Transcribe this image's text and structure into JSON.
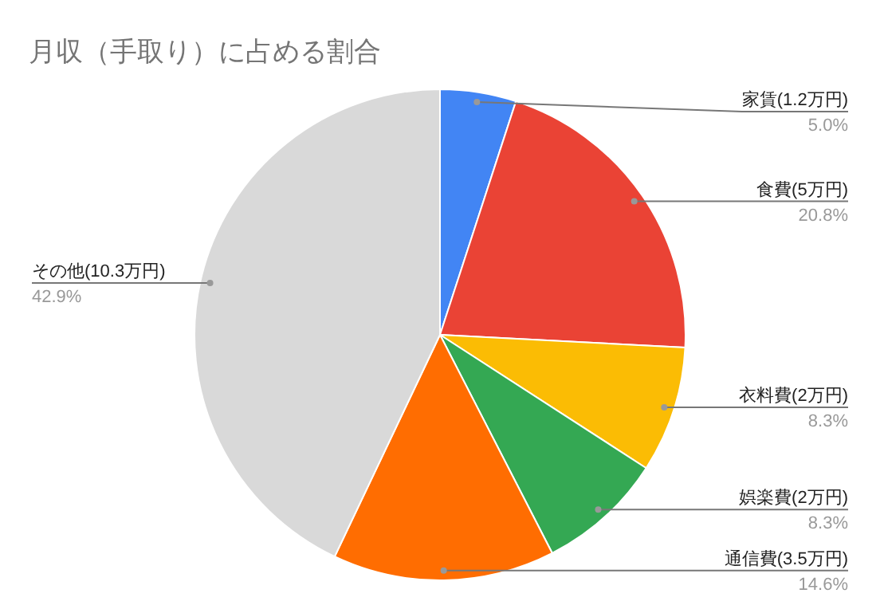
{
  "chart_data": {
    "type": "pie",
    "title": "月収（手取り）に占める割合",
    "categories": [
      "家賃(1.2万円)",
      "食費(5万円)",
      "衣料費(2万円)",
      "娯楽費(2万円)",
      "通信費(3.5万円)",
      "その他(10.3万円)"
    ],
    "values": [
      5.0,
      20.8,
      8.3,
      8.3,
      14.6,
      42.9
    ],
    "value_labels": [
      "5.0%",
      "20.8%",
      "8.3%",
      "8.3%",
      "14.6%",
      "42.9%"
    ],
    "colors": [
      "#4285f4",
      "#ea4335",
      "#fbbc04",
      "#34a853",
      "#ff6d01",
      "#d9d9d9"
    ]
  }
}
